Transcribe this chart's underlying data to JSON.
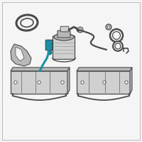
{
  "background_color": "#f5f5f5",
  "border_color": "#bbbbbb",
  "line_color": "#4a4a4a",
  "highlight_color": "#1a8fa8",
  "part_fill": "#d0d0d0",
  "part_fill2": "#b8b8b8",
  "dark_gray": "#333333",
  "white": "#ffffff",
  "figsize": [
    2.0,
    2.0
  ],
  "dpi": 100
}
